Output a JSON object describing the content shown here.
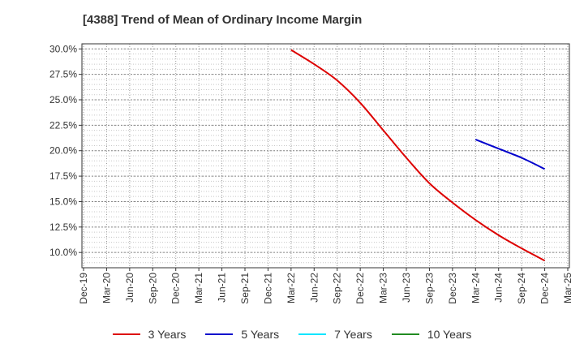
{
  "title": "[4388]  Trend of Mean of Ordinary Income Margin",
  "chart_data": {
    "type": "line",
    "title": "[4388]  Trend of Mean of Ordinary Income Margin",
    "xlabel": "",
    "ylabel": "",
    "categories": [
      "Dec-19",
      "Mar-20",
      "Jun-20",
      "Sep-20",
      "Dec-20",
      "Mar-21",
      "Jun-21",
      "Sep-21",
      "Dec-21",
      "Mar-22",
      "Jun-22",
      "Sep-22",
      "Dec-22",
      "Mar-23",
      "Jun-23",
      "Sep-23",
      "Dec-23",
      "Mar-24",
      "Jun-24",
      "Sep-24",
      "Dec-24",
      "Mar-25"
    ],
    "ylim": [
      8.5,
      30.5
    ],
    "yticks": [
      "10.0%",
      "12.5%",
      "15.0%",
      "17.5%",
      "20.0%",
      "22.5%",
      "25.0%",
      "27.5%",
      "30.0%"
    ],
    "ytick_values": [
      10,
      12.5,
      15,
      17.5,
      20,
      22.5,
      25,
      27.5,
      30
    ],
    "grid": true,
    "legend_position": "bottom",
    "series": [
      {
        "name": "3 Years",
        "color": "#dd0000",
        "values": [
          null,
          null,
          null,
          null,
          null,
          null,
          null,
          null,
          null,
          29.9,
          28.5,
          26.9,
          24.7,
          22.0,
          19.3,
          16.8,
          14.9,
          13.2,
          11.7,
          10.4,
          9.2,
          null
        ]
      },
      {
        "name": "5 Years",
        "color": "#0000cc",
        "values": [
          null,
          null,
          null,
          null,
          null,
          null,
          null,
          null,
          null,
          null,
          null,
          null,
          null,
          null,
          null,
          null,
          null,
          21.1,
          20.2,
          19.3,
          18.2,
          null
        ]
      },
      {
        "name": "7 Years",
        "color": "#00e5ff",
        "values": [
          null,
          null,
          null,
          null,
          null,
          null,
          null,
          null,
          null,
          null,
          null,
          null,
          null,
          null,
          null,
          null,
          null,
          null,
          null,
          null,
          null,
          null
        ]
      },
      {
        "name": "10 Years",
        "color": "#228b22",
        "values": [
          null,
          null,
          null,
          null,
          null,
          null,
          null,
          null,
          null,
          null,
          null,
          null,
          null,
          null,
          null,
          null,
          null,
          null,
          null,
          null,
          null,
          null
        ]
      }
    ]
  }
}
